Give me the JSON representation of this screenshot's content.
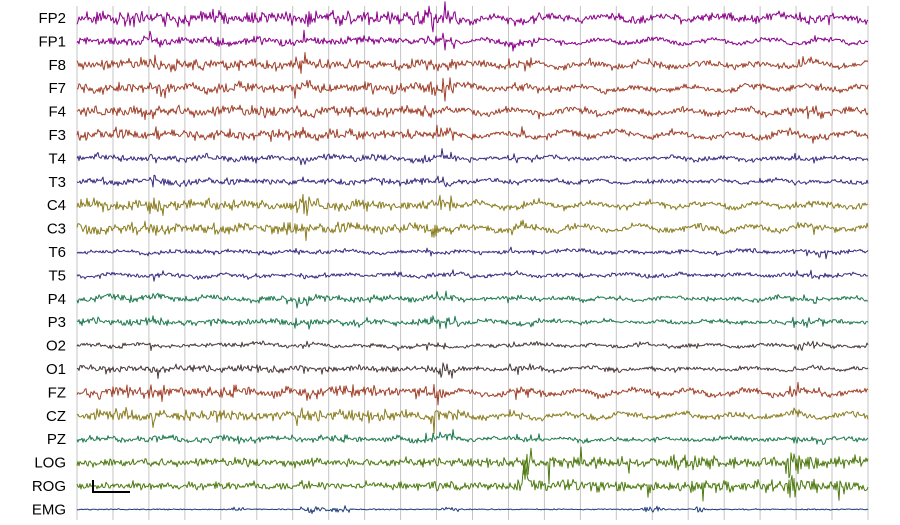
{
  "chart_data": {
    "type": "line",
    "title": "",
    "xlabel": "",
    "ylabel": "",
    "grid": true,
    "epoch_divisions": 22,
    "series": [
      {
        "name": "FP2",
        "color": "#8b008b",
        "amplitude": 5,
        "activity": "high"
      },
      {
        "name": "FP1",
        "color": "#8b008b",
        "amplitude": 3,
        "activity": "high"
      },
      {
        "name": "F8",
        "color": "#a0402a",
        "amplitude": 4,
        "activity": "high"
      },
      {
        "name": "F7",
        "color": "#a0402a",
        "amplitude": 4,
        "activity": "high"
      },
      {
        "name": "F4",
        "color": "#a0402a",
        "amplitude": 4,
        "activity": "high"
      },
      {
        "name": "F3",
        "color": "#a0402a",
        "amplitude": 4,
        "activity": "high"
      },
      {
        "name": "T4",
        "color": "#3b2b80",
        "amplitude": 3,
        "activity": "medium"
      },
      {
        "name": "T3",
        "color": "#3b2b80",
        "amplitude": 3,
        "activity": "medium"
      },
      {
        "name": "C4",
        "color": "#8b7d20",
        "amplitude": 4,
        "activity": "high"
      },
      {
        "name": "C3",
        "color": "#8b7d20",
        "amplitude": 4,
        "activity": "high"
      },
      {
        "name": "T6",
        "color": "#3b2b80",
        "amplitude": 2,
        "activity": "low"
      },
      {
        "name": "T5",
        "color": "#3b2b80",
        "amplitude": 2,
        "activity": "low"
      },
      {
        "name": "P4",
        "color": "#1e7a4e",
        "amplitude": 3,
        "activity": "medium"
      },
      {
        "name": "P3",
        "color": "#1e7a4e",
        "amplitude": 3,
        "activity": "medium"
      },
      {
        "name": "O2",
        "color": "#4a3a3a",
        "amplitude": 2,
        "activity": "low"
      },
      {
        "name": "O1",
        "color": "#4a3a3a",
        "amplitude": 3,
        "activity": "medium"
      },
      {
        "name": "FZ",
        "color": "#a0402a",
        "amplitude": 4,
        "activity": "high"
      },
      {
        "name": "CZ",
        "color": "#8b7d20",
        "amplitude": 4,
        "activity": "high"
      },
      {
        "name": "PZ",
        "color": "#1e7a4e",
        "amplitude": 3,
        "activity": "medium"
      },
      {
        "name": "LOG",
        "color": "#4e7a10",
        "amplitude": 4,
        "activity": "eye"
      },
      {
        "name": "ROG",
        "color": "#4e7a10",
        "amplitude": 4,
        "activity": "eye"
      },
      {
        "name": "EMG",
        "color": "#1f3f7a",
        "amplitude": 1,
        "activity": "emg"
      }
    ]
  }
}
